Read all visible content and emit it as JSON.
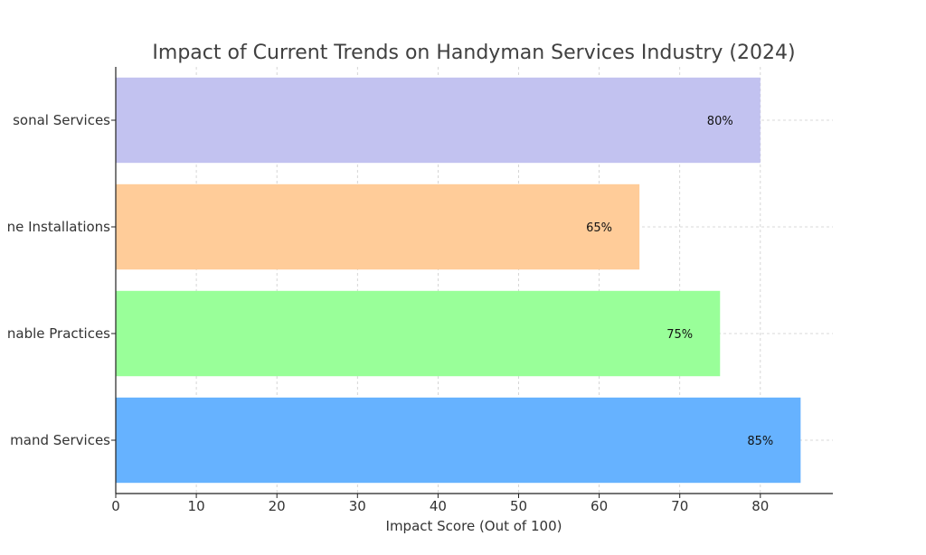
{
  "chart_data": {
    "type": "bar",
    "orientation": "horizontal",
    "title": "Impact of Current Trends on Handyman Services Industry (2024)",
    "xlabel": "Impact Score (Out of 100)",
    "ylabel": "",
    "xlim": [
      0,
      89
    ],
    "xticks": [
      0,
      10,
      20,
      30,
      40,
      50,
      60,
      70,
      80
    ],
    "grid": true,
    "categories": [
      "mand Services",
      "nable Practices",
      "ne Installations",
      "sonal Services"
    ],
    "values": [
      85,
      75,
      65,
      80
    ],
    "data_labels": [
      "85%",
      "75%",
      "65%",
      "80%"
    ],
    "colors": [
      "#66b2ff",
      "#99ff99",
      "#ffcc99",
      "#c2c2f0"
    ]
  }
}
